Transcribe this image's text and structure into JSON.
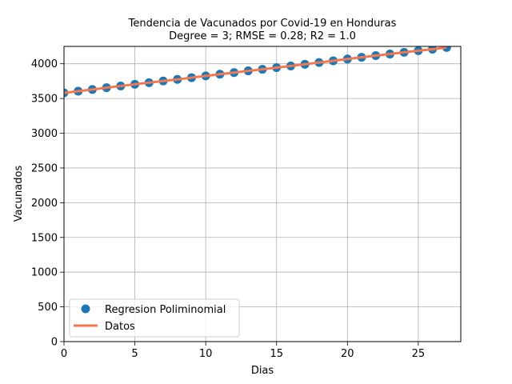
{
  "chart_data": {
    "type": "scatter",
    "title_line1": "Tendencia de Vacunados por Covid-19 en Honduras",
    "title_line2": "Degree = 3; RMSE = 0.28; R2 = 1.0",
    "xlabel": "Dias",
    "ylabel": "Vacunados",
    "xlim": [
      0,
      28
    ],
    "ylim": [
      0,
      4250
    ],
    "xticks": [
      0,
      5,
      10,
      15,
      20,
      25
    ],
    "yticks": [
      0,
      500,
      1000,
      1500,
      2000,
      2500,
      3000,
      3500,
      4000
    ],
    "grid": true,
    "legend_position": "lower-left",
    "series": [
      {
        "name": "Regresion Poliminomial",
        "kind": "scatter",
        "color": "#1f77b4",
        "x": [
          0,
          1,
          2,
          3,
          4,
          5,
          6,
          7,
          8,
          9,
          10,
          11,
          12,
          13,
          14,
          15,
          16,
          17,
          18,
          19,
          20,
          21,
          22,
          23,
          24,
          25,
          26,
          27
        ],
        "values": [
          3580,
          3605,
          3630,
          3655,
          3680,
          3705,
          3728,
          3752,
          3775,
          3800,
          3825,
          3850,
          3873,
          3898,
          3920,
          3945,
          3968,
          3993,
          4018,
          4043,
          4068,
          4093,
          4118,
          4140,
          4165,
          4188,
          4210,
          4235
        ]
      },
      {
        "name": "Datos",
        "kind": "line",
        "color": "#f4784f",
        "x": [
          0,
          1,
          2,
          3,
          4,
          5,
          6,
          7,
          8,
          9,
          10,
          11,
          12,
          13,
          14,
          15,
          16,
          17,
          18,
          19,
          20,
          21,
          22,
          23,
          24,
          25,
          26,
          27
        ],
        "values": [
          3580,
          3605,
          3630,
          3655,
          3680,
          3705,
          3728,
          3752,
          3775,
          3800,
          3825,
          3850,
          3873,
          3898,
          3920,
          3945,
          3968,
          3993,
          4018,
          4043,
          4068,
          4093,
          4118,
          4140,
          4165,
          4188,
          4210,
          4235
        ]
      }
    ]
  }
}
